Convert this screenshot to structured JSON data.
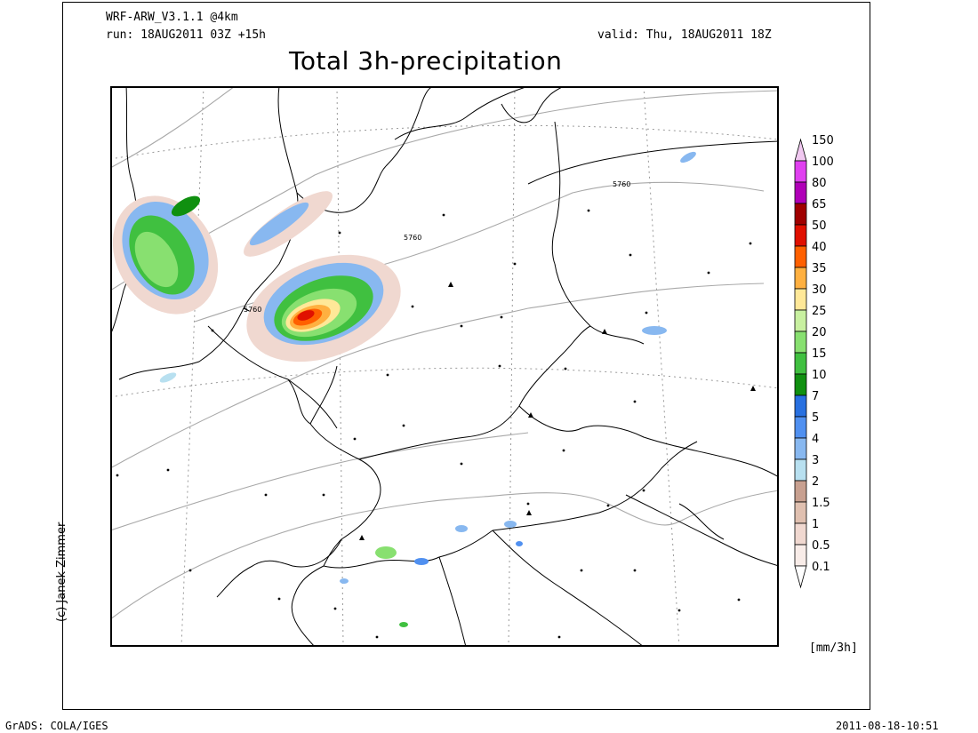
{
  "header": {
    "model": "WRF-ARW_V3.1.1 @4km",
    "run": "run: 18AUG2011 03Z +15h",
    "valid": "valid: Thu, 18AUG2011 18Z",
    "title": "Total 3h-precipitation"
  },
  "credit": "(c) Janek Zimmer",
  "footer": {
    "left": "GrADS: COLA/IGES",
    "right": "2011-08-18-10:51"
  },
  "map": {
    "contour_labels": [
      "5760",
      "5760",
      "5760"
    ]
  },
  "legend": {
    "unit": "[mm/3h]",
    "levels": [
      {
        "label": "150",
        "color": "#f0c8f0"
      },
      {
        "label": "100",
        "color": "#e040f0"
      },
      {
        "label": "80",
        "color": "#b000b8"
      },
      {
        "label": "65",
        "color": "#a00000"
      },
      {
        "label": "50",
        "color": "#e01000"
      },
      {
        "label": "40",
        "color": "#ff6000"
      },
      {
        "label": "35",
        "color": "#ffb040"
      },
      {
        "label": "30",
        "color": "#ffe898"
      },
      {
        "label": "25",
        "color": "#c8f0a0"
      },
      {
        "label": "20",
        "color": "#88e070"
      },
      {
        "label": "15",
        "color": "#40c040"
      },
      {
        "label": "10",
        "color": "#109010"
      },
      {
        "label": "7",
        "color": "#2870e0"
      },
      {
        "label": "5",
        "color": "#5090f0"
      },
      {
        "label": "4",
        "color": "#88b8f0"
      },
      {
        "label": "3",
        "color": "#b8e0f0"
      },
      {
        "label": "2",
        "color": "#c8a090"
      },
      {
        "label": "1.5",
        "color": "#e0c0b0"
      },
      {
        "label": "1",
        "color": "#f0d8d0"
      },
      {
        "label": "0.5",
        "color": "#f8ece8"
      },
      {
        "label": "0.1",
        "color": "#ffffff"
      }
    ]
  }
}
